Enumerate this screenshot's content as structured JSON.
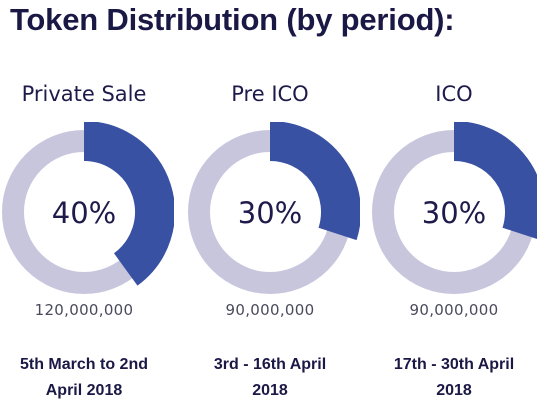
{
  "title": "Token Distribution (by period):",
  "colors": {
    "filled": "#3951a3",
    "track": "#c7c6dd",
    "text": "#1e1b4b"
  },
  "chart_data": {
    "type": "pie",
    "title": "Token Distribution (by period):",
    "series": [
      {
        "name": "Private Sale",
        "label": "40%",
        "value": 40,
        "amount": "120,000,000",
        "dates": [
          "5th March to 2nd",
          "April 2018"
        ]
      },
      {
        "name": "Pre ICO",
        "label": "30%",
        "value": 30,
        "amount": "90,000,000",
        "dates": [
          "3rd - 16th April",
          "2018"
        ]
      },
      {
        "name": "ICO",
        "label": "30%",
        "value": 30,
        "amount": "90,000,000",
        "dates": [
          "17th - 30th April",
          "2018"
        ]
      }
    ]
  }
}
